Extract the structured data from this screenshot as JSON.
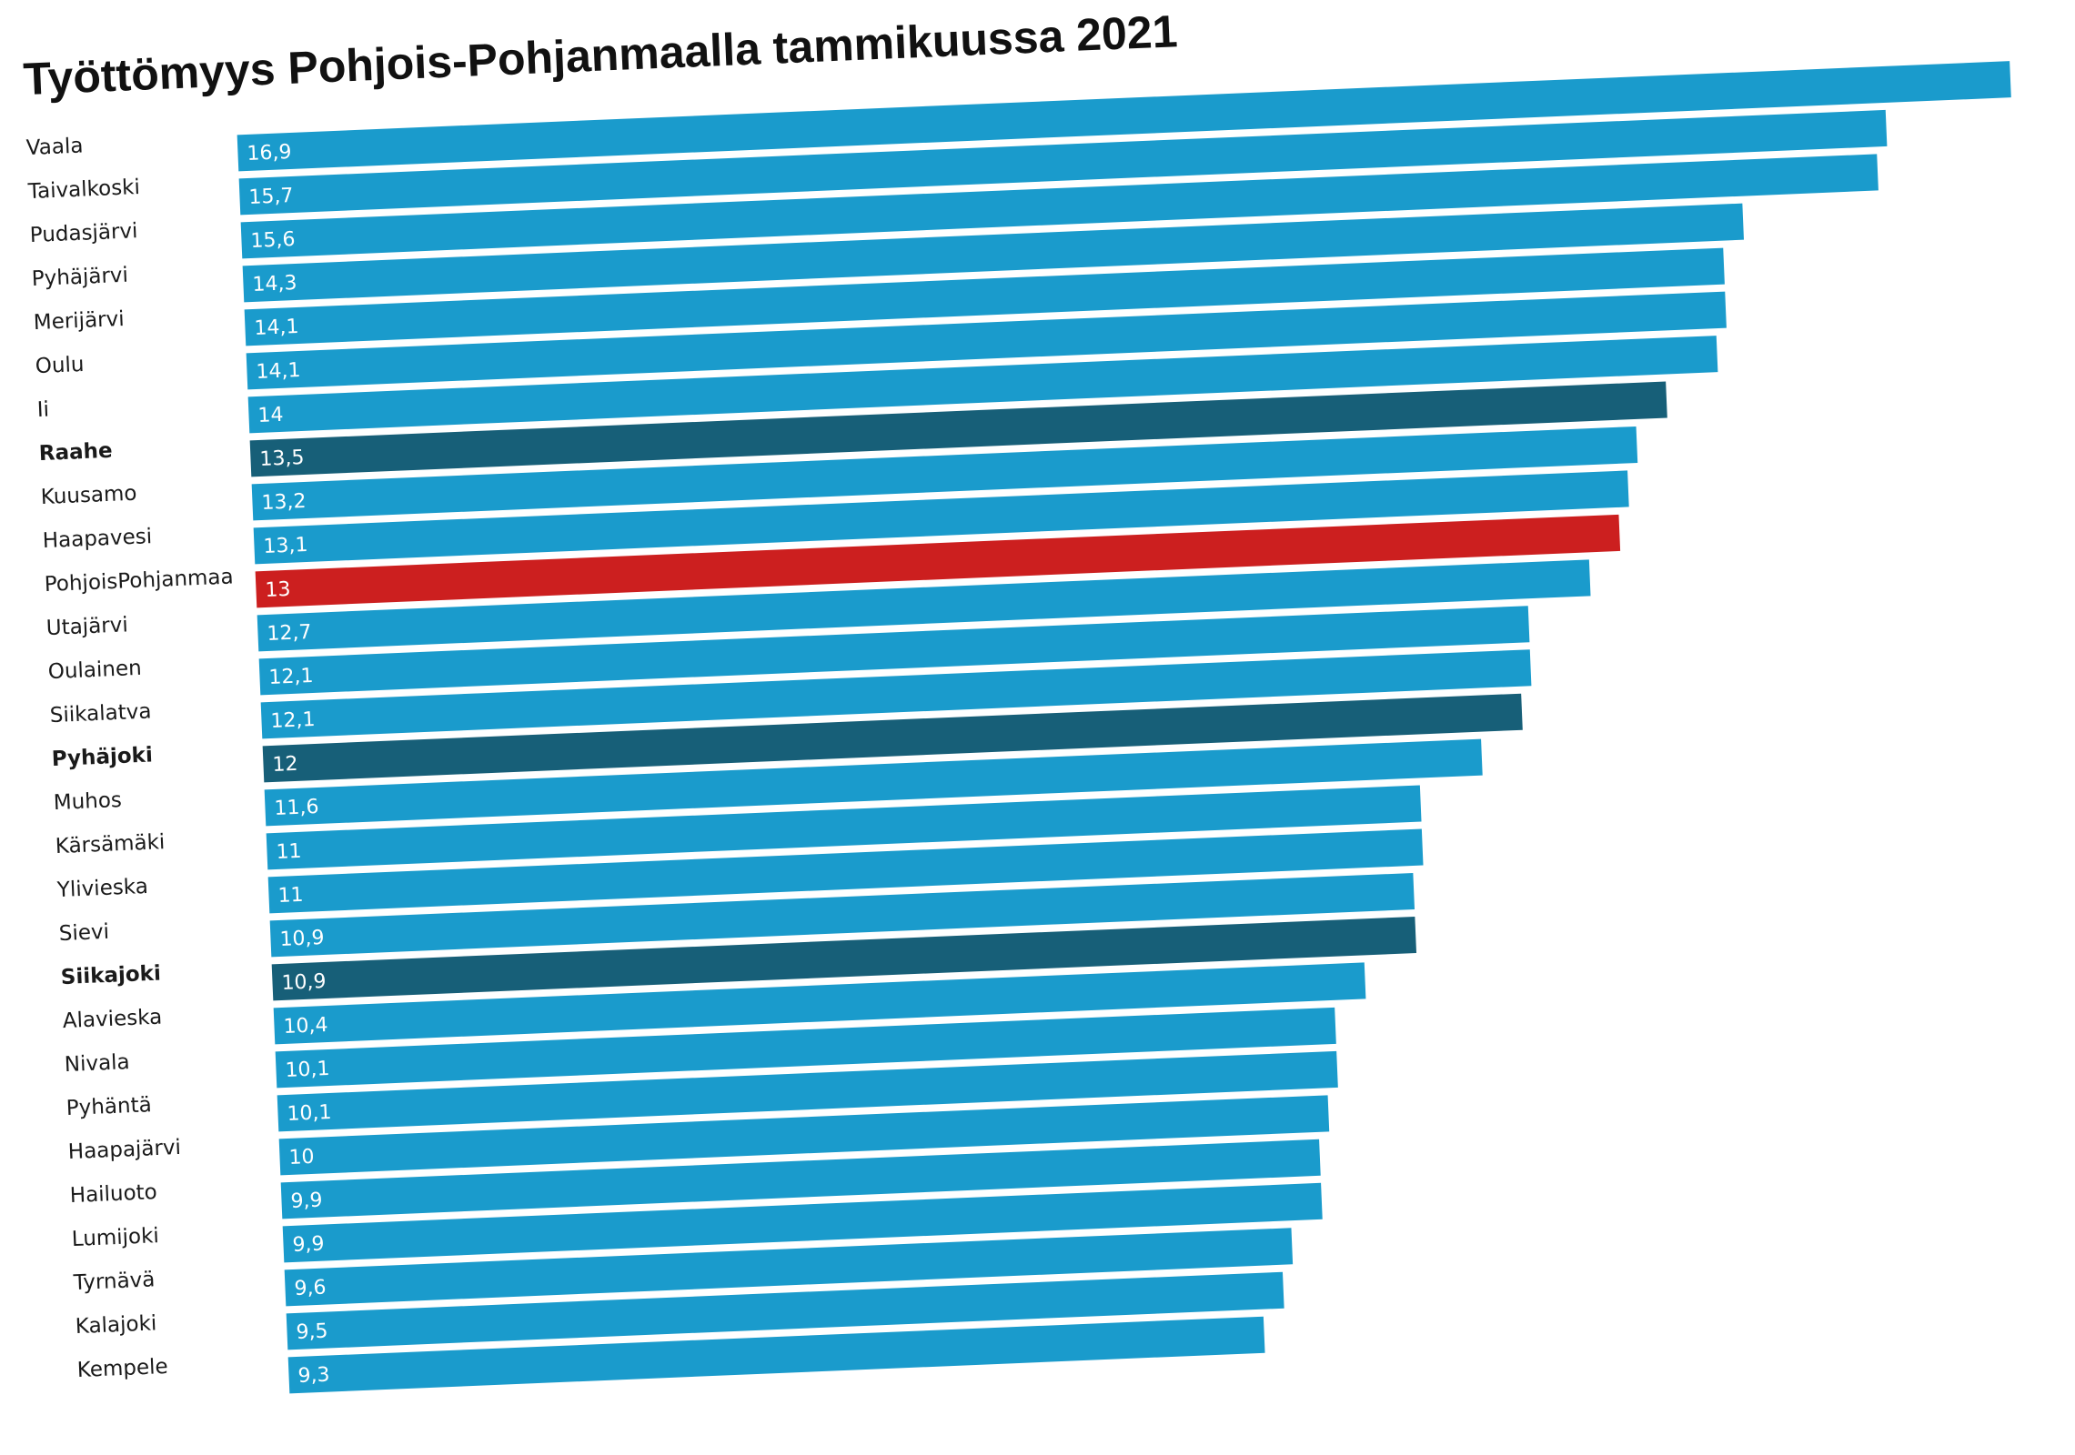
{
  "chart_data": {
    "type": "bar",
    "orientation": "horizontal",
    "title": "Työttömyys Pohjois-Pohjanmaalla tammikuussa 2021",
    "categories": [
      "Vaala",
      "Taivalkoski",
      "Pudasjärvi",
      "Pyhäjärvi",
      "Merijärvi",
      "Oulu",
      "Ii",
      "Raahe",
      "Kuusamo",
      "Haapavesi",
      "PohjoisPohjanmaa",
      "Utajärvi",
      "Oulainen",
      "Siikalatva",
      "Pyhäjoki",
      "Muhos",
      "Kärsämäki",
      "Ylivieska",
      "Sievi",
      "Siikajoki",
      "Alavieska",
      "Nivala",
      "Pyhäntä",
      "Haapajärvi",
      "Hailuoto",
      "Lumijoki",
      "Tyrnävä",
      "Kalajoki",
      "Kempele"
    ],
    "values": [
      16.9,
      15.7,
      15.6,
      14.3,
      14.1,
      14.1,
      14,
      13.5,
      13.2,
      13.1,
      13,
      12.7,
      12.1,
      12.1,
      12,
      11.6,
      11,
      11,
      10.9,
      10.9,
      10.4,
      10.1,
      10.1,
      10,
      9.9,
      9.9,
      9.6,
      9.5,
      9.3
    ],
    "value_labels": [
      "16,9",
      "15,7",
      "15,6",
      "14,3",
      "14,1",
      "14,1",
      "14",
      "13,5",
      "13,2",
      "13,1",
      "13",
      "12,7",
      "12,1",
      "12,1",
      "12",
      "11,6",
      "11",
      "11",
      "10,9",
      "10,9",
      "10,4",
      "10,1",
      "10,1",
      "10",
      "9,9",
      "9,9",
      "9,6",
      "9,5",
      "9,3"
    ],
    "bold_categories": [
      "Raahe",
      "Pyhäjoki",
      "Siikajoki"
    ],
    "highlight_categories": [
      "PohjoisPohjanmaa"
    ],
    "xlim": [
      0,
      17
    ],
    "grid": false,
    "legend": "none",
    "colors": {
      "default": "#1a9bcc",
      "bold": "#175f78",
      "highlight": "#cc1f1f"
    }
  }
}
